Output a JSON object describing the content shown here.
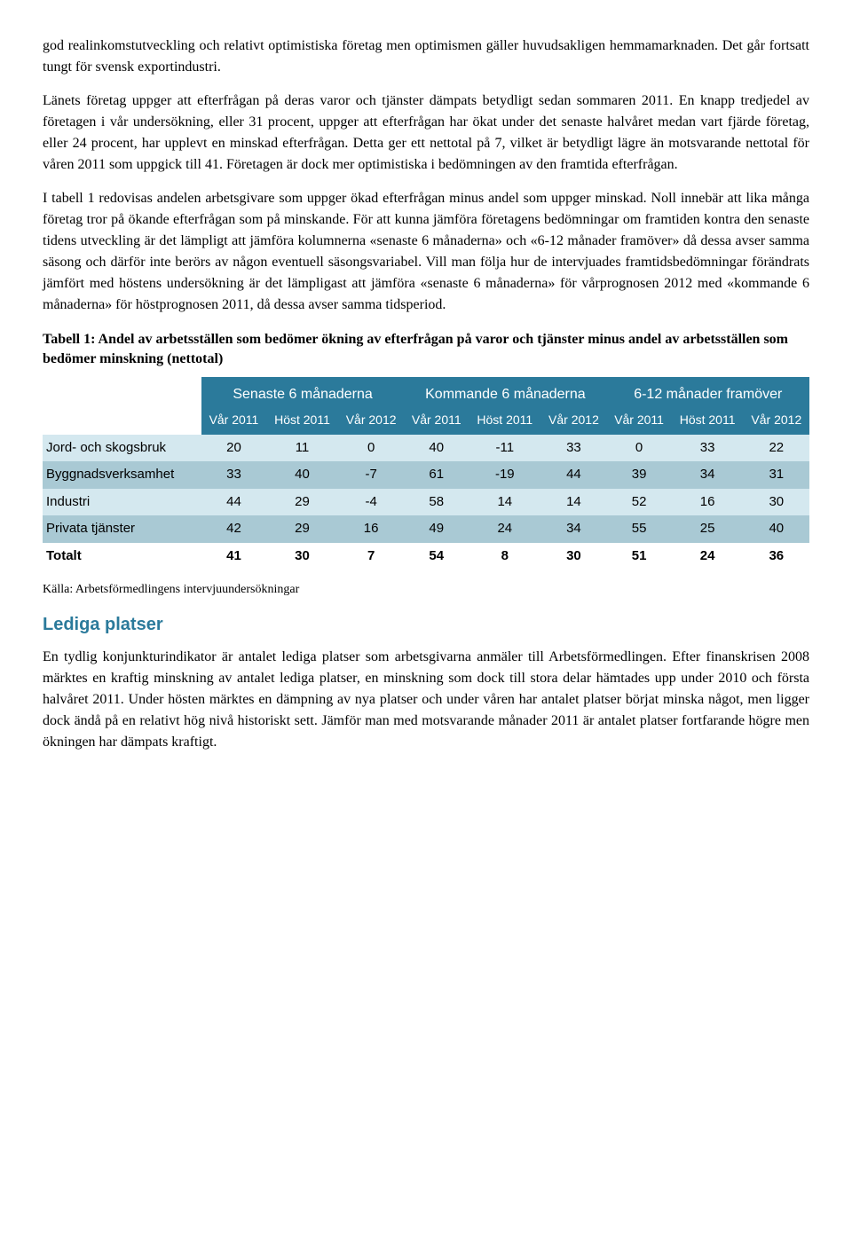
{
  "paragraphs": {
    "p1": "god realinkomstutveckling och relativt optimistiska företag men optimismen gäller huvudsakligen hemmamarknaden. Det går fortsatt tungt för svensk exportindustri.",
    "p2": "Länets företag uppger att efterfrågan på deras varor och tjänster dämpats betydligt sedan sommaren 2011. En knapp tredjedel av företagen i vår undersökning, eller 31 procent, uppger att efterfrågan har ökat under det senaste halvåret medan vart fjärde företag, eller 24 procent, har upplevt en minskad efterfrågan. Detta ger ett nettotal på 7, vilket är betydligt lägre än motsvarande nettotal för våren 2011 som uppgick till 41. Företagen är dock mer optimistiska i bedömningen av den framtida efterfrågan.",
    "p3": "I tabell 1 redovisas andelen arbetsgivare som uppger ökad efterfrågan minus andel som uppger minskad. Noll innebär att lika många företag tror på ökande efterfrågan som på minskande. För att kunna jämföra företagens bedömningar om framtiden kontra den senaste tidens utveckling är det lämpligt att jämföra kolumnerna «senaste 6 månaderna» och «6-12 månader framöver» då dessa avser samma säsong och därför inte berörs av någon eventuell säsongsvariabel. Vill man följa hur de intervjuades framtidsbedömningar förändrats jämfört med höstens undersökning är det lämpligast att jämföra «senaste 6 månaderna» för vårprognosen 2012 med «kommande 6 månaderna» för höstprognosen 2011, då dessa avser samma tidsperiod.",
    "p4": "En tydlig konjunkturindikator är antalet lediga platser som arbetsgivarna anmäler till Arbetsförmedlingen. Efter finanskrisen 2008 märktes en kraftig minskning av antalet lediga platser, en minskning som dock till stora delar hämtades upp under 2010 och första halvåret 2011. Under hösten märktes en dämpning av nya platser och under våren har antalet platser börjat minska något, men ligger dock ändå på en relativt hög nivå historiskt sett. Jämför man med motsvarande månader 2011 är antalet platser fortfarande högre men ökningen har dämpats kraftigt."
  },
  "table": {
    "caption": "Tabell 1: Andel av arbetsställen som bedömer ökning av efterfrågan på varor och tjänster minus andel av arbetsställen som bedömer minskning (nettotal)",
    "groups": [
      "Senaste 6 månaderna",
      "Kommande 6 månaderna",
      "6-12 månader framöver"
    ],
    "subheaders": [
      "Vår 2011",
      "Höst 2011",
      "Vår 2012",
      "Vår 2011",
      "Höst 2011",
      "Vår 2012",
      "Vår 2011",
      "Höst 2011",
      "Vår 2012"
    ],
    "rows": [
      {
        "label": "Jord- och skogsbruk",
        "values": [
          20,
          11,
          0,
          40,
          -11,
          33,
          0,
          33,
          22
        ]
      },
      {
        "label": "Byggnadsverksamhet",
        "values": [
          33,
          40,
          -7,
          61,
          -19,
          44,
          39,
          34,
          31
        ]
      },
      {
        "label": "Industri",
        "values": [
          44,
          29,
          -4,
          58,
          14,
          14,
          52,
          16,
          30
        ]
      },
      {
        "label": "Privata tjänster",
        "values": [
          42,
          29,
          16,
          49,
          24,
          34,
          55,
          25,
          40
        ]
      },
      {
        "label": "Totalt",
        "values": [
          41,
          30,
          7,
          54,
          8,
          30,
          51,
          24,
          36
        ]
      }
    ],
    "source": "Källa: Arbetsförmedlingens intervjuundersökningar",
    "colors": {
      "header_bg": "#2b7a9b",
      "header_text": "#ffffff",
      "row_light": "#d4e8ef",
      "row_dark": "#a9c9d4",
      "row_total": "#ffffff"
    }
  },
  "heading": "Lediga platser"
}
